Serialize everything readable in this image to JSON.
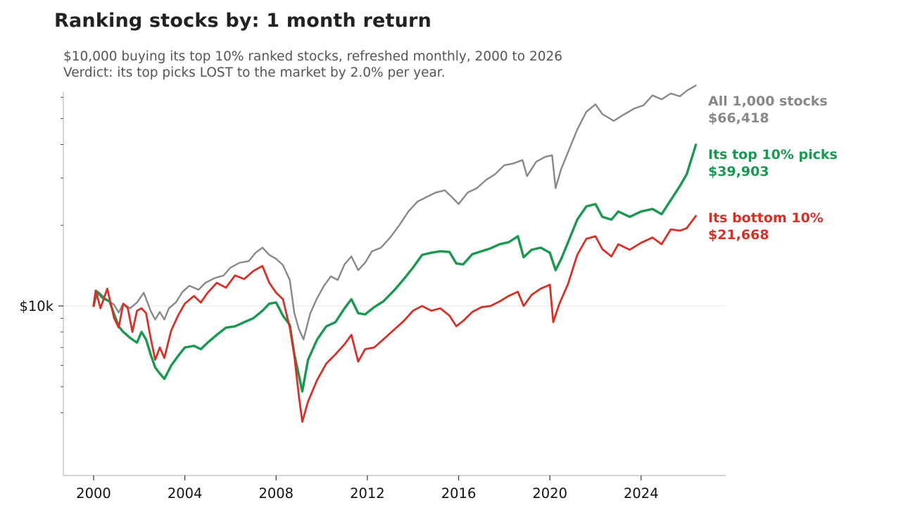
{
  "title": "Ranking stocks by: 1 month return",
  "subtitle": {
    "line1": "$10,000 buying its top 10% ranked stocks, refreshed monthly, 2000 to 2026",
    "line2": "Verdict: its top picks LOST to the market by 2.0% per year."
  },
  "chart_data": {
    "type": "line",
    "title": "Ranking stocks by: 1 month return",
    "xlabel": "",
    "ylabel": "",
    "y_scale": "log",
    "xlim": [
      1999.0,
      2026.8
    ],
    "ylim": [
      3400,
      70000
    ],
    "x_ticks": [
      2000,
      2004,
      2008,
      2012,
      2016,
      2020,
      2024
    ],
    "y_ticks": [
      {
        "value": 10000,
        "label": "$10k"
      }
    ],
    "grid": "horizontal reference line at $10k",
    "legend": "direct labels at right end of lines",
    "series": [
      {
        "name": "All 1,000 stocks",
        "end_label": "$66,418",
        "color": "#888888",
        "points": [
          [
            2000.0,
            10000
          ],
          [
            2000.2,
            11300
          ],
          [
            2000.5,
            10700
          ],
          [
            2000.9,
            10100
          ],
          [
            2001.1,
            9450
          ],
          [
            2001.3,
            10200
          ],
          [
            2001.6,
            9800
          ],
          [
            2001.9,
            10300
          ],
          [
            2002.2,
            11200
          ],
          [
            2002.5,
            9600
          ],
          [
            2002.7,
            8900
          ],
          [
            2002.9,
            9500
          ],
          [
            2003.1,
            8900
          ],
          [
            2003.3,
            9800
          ],
          [
            2003.6,
            10300
          ],
          [
            2003.9,
            11300
          ],
          [
            2004.2,
            11900
          ],
          [
            2004.6,
            11500
          ],
          [
            2004.9,
            12200
          ],
          [
            2005.3,
            12700
          ],
          [
            2005.7,
            13000
          ],
          [
            2006.0,
            13900
          ],
          [
            2006.4,
            14500
          ],
          [
            2006.8,
            14700
          ],
          [
            2007.1,
            15800
          ],
          [
            2007.4,
            16500
          ],
          [
            2007.7,
            15500
          ],
          [
            2008.0,
            15000
          ],
          [
            2008.3,
            14200
          ],
          [
            2008.6,
            12500
          ],
          [
            2008.8,
            9400
          ],
          [
            2009.0,
            8200
          ],
          [
            2009.2,
            7500
          ],
          [
            2009.5,
            9400
          ],
          [
            2009.8,
            10700
          ],
          [
            2010.1,
            11900
          ],
          [
            2010.4,
            12900
          ],
          [
            2010.7,
            12500
          ],
          [
            2011.0,
            14300
          ],
          [
            2011.3,
            15300
          ],
          [
            2011.6,
            13600
          ],
          [
            2011.9,
            14500
          ],
          [
            2012.2,
            16000
          ],
          [
            2012.6,
            16500
          ],
          [
            2013.0,
            18000
          ],
          [
            2013.4,
            20000
          ],
          [
            2013.8,
            22500
          ],
          [
            2014.2,
            24500
          ],
          [
            2014.6,
            25500
          ],
          [
            2015.0,
            26500
          ],
          [
            2015.4,
            27000
          ],
          [
            2015.7,
            25500
          ],
          [
            2016.0,
            24000
          ],
          [
            2016.4,
            26500
          ],
          [
            2016.8,
            27500
          ],
          [
            2017.2,
            29500
          ],
          [
            2017.6,
            31000
          ],
          [
            2018.0,
            33500
          ],
          [
            2018.4,
            34000
          ],
          [
            2018.8,
            35000
          ],
          [
            2019.0,
            30500
          ],
          [
            2019.4,
            34500
          ],
          [
            2019.8,
            36000
          ],
          [
            2020.1,
            36500
          ],
          [
            2020.25,
            27500
          ],
          [
            2020.5,
            32500
          ],
          [
            2020.8,
            37500
          ],
          [
            2021.2,
            45500
          ],
          [
            2021.6,
            53000
          ],
          [
            2022.0,
            56500
          ],
          [
            2022.3,
            52000
          ],
          [
            2022.8,
            49000
          ],
          [
            2023.2,
            51500
          ],
          [
            2023.7,
            54500
          ],
          [
            2024.1,
            56000
          ],
          [
            2024.5,
            61000
          ],
          [
            2024.9,
            59000
          ],
          [
            2025.3,
            62000
          ],
          [
            2025.7,
            60500
          ],
          [
            2026.0,
            63500
          ],
          [
            2026.4,
            66418
          ]
        ]
      },
      {
        "name": "Its top 10% picks",
        "end_label": "$39,903",
        "color": "#1a9850",
        "points": [
          [
            2000.0,
            10000
          ],
          [
            2000.1,
            11400
          ],
          [
            2000.4,
            10700
          ],
          [
            2000.7,
            10400
          ],
          [
            2000.9,
            9300
          ],
          [
            2001.1,
            8400
          ],
          [
            2001.3,
            8000
          ],
          [
            2001.6,
            7600
          ],
          [
            2001.9,
            7300
          ],
          [
            2002.1,
            8000
          ],
          [
            2002.3,
            7500
          ],
          [
            2002.5,
            6600
          ],
          [
            2002.7,
            5900
          ],
          [
            2002.9,
            5600
          ],
          [
            2003.1,
            5350
          ],
          [
            2003.4,
            6000
          ],
          [
            2003.7,
            6500
          ],
          [
            2004.0,
            7000
          ],
          [
            2004.4,
            7100
          ],
          [
            2004.7,
            6900
          ],
          [
            2005.0,
            7300
          ],
          [
            2005.4,
            7800
          ],
          [
            2005.8,
            8300
          ],
          [
            2006.2,
            8400
          ],
          [
            2006.6,
            8700
          ],
          [
            2007.0,
            9000
          ],
          [
            2007.4,
            9600
          ],
          [
            2007.7,
            10200
          ],
          [
            2008.0,
            10300
          ],
          [
            2008.3,
            9200
          ],
          [
            2008.6,
            8500
          ],
          [
            2008.8,
            6600
          ],
          [
            2009.0,
            5500
          ],
          [
            2009.15,
            4800
          ],
          [
            2009.4,
            6300
          ],
          [
            2009.8,
            7500
          ],
          [
            2010.2,
            8400
          ],
          [
            2010.6,
            8700
          ],
          [
            2011.0,
            9800
          ],
          [
            2011.3,
            10600
          ],
          [
            2011.6,
            9400
          ],
          [
            2011.9,
            9300
          ],
          [
            2012.3,
            9900
          ],
          [
            2012.7,
            10400
          ],
          [
            2013.2,
            11500
          ],
          [
            2013.6,
            12600
          ],
          [
            2014.0,
            13900
          ],
          [
            2014.4,
            15500
          ],
          [
            2014.8,
            15800
          ],
          [
            2015.2,
            16000
          ],
          [
            2015.6,
            15900
          ],
          [
            2015.9,
            14400
          ],
          [
            2016.2,
            14300
          ],
          [
            2016.6,
            15600
          ],
          [
            2017.0,
            16000
          ],
          [
            2017.4,
            16400
          ],
          [
            2017.8,
            17000
          ],
          [
            2018.2,
            17300
          ],
          [
            2018.6,
            18200
          ],
          [
            2018.85,
            15200
          ],
          [
            2019.2,
            16200
          ],
          [
            2019.6,
            16500
          ],
          [
            2020.0,
            15800
          ],
          [
            2020.25,
            13600
          ],
          [
            2020.5,
            15000
          ],
          [
            2020.8,
            17300
          ],
          [
            2021.2,
            21000
          ],
          [
            2021.6,
            23500
          ],
          [
            2022.0,
            24000
          ],
          [
            2022.3,
            21500
          ],
          [
            2022.7,
            21000
          ],
          [
            2023.0,
            22500
          ],
          [
            2023.5,
            21500
          ],
          [
            2024.0,
            22500
          ],
          [
            2024.5,
            23000
          ],
          [
            2024.9,
            22000
          ],
          [
            2025.3,
            24800
          ],
          [
            2025.7,
            28000
          ],
          [
            2026.0,
            31000
          ],
          [
            2026.4,
            39903
          ]
        ]
      },
      {
        "name": "Its bottom 10%",
        "end_label": "$21,668",
        "color": "#d73027",
        "points": [
          [
            2000.0,
            10000
          ],
          [
            2000.1,
            11400
          ],
          [
            2000.3,
            9800
          ],
          [
            2000.6,
            11600
          ],
          [
            2000.9,
            9000
          ],
          [
            2001.1,
            8300
          ],
          [
            2001.3,
            10200
          ],
          [
            2001.5,
            9800
          ],
          [
            2001.7,
            8000
          ],
          [
            2001.9,
            9600
          ],
          [
            2002.1,
            9800
          ],
          [
            2002.3,
            9400
          ],
          [
            2002.5,
            7600
          ],
          [
            2002.7,
            6300
          ],
          [
            2002.9,
            7000
          ],
          [
            2003.1,
            6400
          ],
          [
            2003.4,
            8100
          ],
          [
            2003.7,
            9200
          ],
          [
            2004.0,
            10200
          ],
          [
            2004.4,
            10900
          ],
          [
            2004.7,
            10300
          ],
          [
            2005.0,
            11200
          ],
          [
            2005.4,
            12200
          ],
          [
            2005.8,
            11700
          ],
          [
            2006.2,
            13000
          ],
          [
            2006.6,
            12600
          ],
          [
            2007.0,
            13500
          ],
          [
            2007.4,
            14100
          ],
          [
            2007.7,
            12200
          ],
          [
            2008.0,
            11200
          ],
          [
            2008.3,
            10600
          ],
          [
            2008.6,
            8300
          ],
          [
            2008.8,
            6500
          ],
          [
            2009.0,
            4600
          ],
          [
            2009.15,
            3700
          ],
          [
            2009.4,
            4400
          ],
          [
            2009.8,
            5300
          ],
          [
            2010.2,
            6100
          ],
          [
            2010.6,
            6600
          ],
          [
            2011.0,
            7200
          ],
          [
            2011.3,
            7800
          ],
          [
            2011.6,
            6200
          ],
          [
            2011.9,
            6900
          ],
          [
            2012.3,
            7000
          ],
          [
            2012.7,
            7500
          ],
          [
            2013.2,
            8200
          ],
          [
            2013.6,
            8800
          ],
          [
            2014.0,
            9600
          ],
          [
            2014.4,
            10000
          ],
          [
            2014.8,
            9600
          ],
          [
            2015.2,
            9800
          ],
          [
            2015.6,
            9200
          ],
          [
            2015.9,
            8400
          ],
          [
            2016.2,
            8800
          ],
          [
            2016.6,
            9500
          ],
          [
            2017.0,
            9900
          ],
          [
            2017.4,
            10000
          ],
          [
            2017.8,
            10400
          ],
          [
            2018.2,
            10900
          ],
          [
            2018.6,
            11300
          ],
          [
            2018.85,
            10000
          ],
          [
            2019.2,
            11000
          ],
          [
            2019.6,
            11600
          ],
          [
            2020.0,
            12000
          ],
          [
            2020.15,
            8700
          ],
          [
            2020.4,
            10100
          ],
          [
            2020.8,
            12100
          ],
          [
            2021.2,
            15500
          ],
          [
            2021.6,
            17800
          ],
          [
            2022.0,
            18200
          ],
          [
            2022.3,
            16300
          ],
          [
            2022.7,
            15300
          ],
          [
            2023.0,
            17000
          ],
          [
            2023.5,
            16200
          ],
          [
            2024.0,
            17200
          ],
          [
            2024.5,
            18000
          ],
          [
            2024.9,
            17000
          ],
          [
            2025.3,
            19300
          ],
          [
            2025.7,
            19100
          ],
          [
            2026.0,
            19500
          ],
          [
            2026.4,
            21668
          ]
        ]
      }
    ]
  }
}
